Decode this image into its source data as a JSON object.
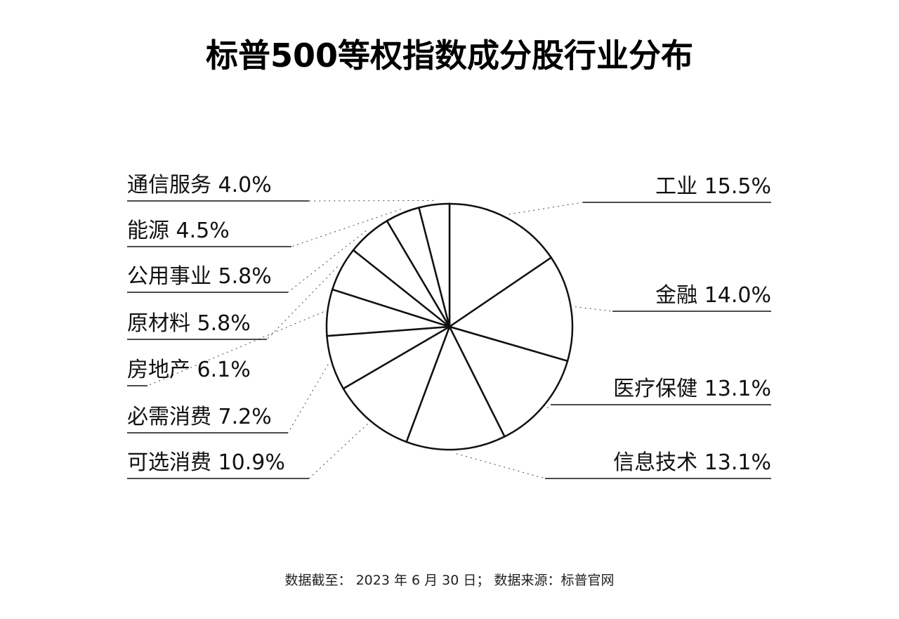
{
  "chart_data": {
    "type": "pie",
    "title": "标普500等权指数成分股行业分布",
    "slices": [
      {
        "label": "工业",
        "value": 15.5,
        "value_text": "15.5%"
      },
      {
        "label": "金融",
        "value": 14.0,
        "value_text": "14.0%"
      },
      {
        "label": "医疗保健",
        "value": 13.1,
        "value_text": "13.1%"
      },
      {
        "label": "信息技术",
        "value": 13.1,
        "value_text": "13.1%"
      },
      {
        "label": "可选消费",
        "value": 10.9,
        "value_text": "10.9%"
      },
      {
        "label": "必需消费",
        "value": 7.2,
        "value_text": "7.2%"
      },
      {
        "label": "房地产",
        "value": 6.1,
        "value_text": "6.1%"
      },
      {
        "label": "原材料",
        "value": 5.8,
        "value_text": "5.8%"
      },
      {
        "label": "公用事业",
        "value": 5.8,
        "value_text": "5.8%"
      },
      {
        "label": "能源",
        "value": 4.5,
        "value_text": "4.5%"
      },
      {
        "label": "通信服务",
        "value": 4.0,
        "value_text": "4.0%"
      }
    ],
    "start_angle_deg": 0,
    "direction": "clockwise",
    "legend_placement": "labels on both sides"
  },
  "footer": "数据截至： 2023 年 6 月 30 日； 数据来源：标普官网"
}
